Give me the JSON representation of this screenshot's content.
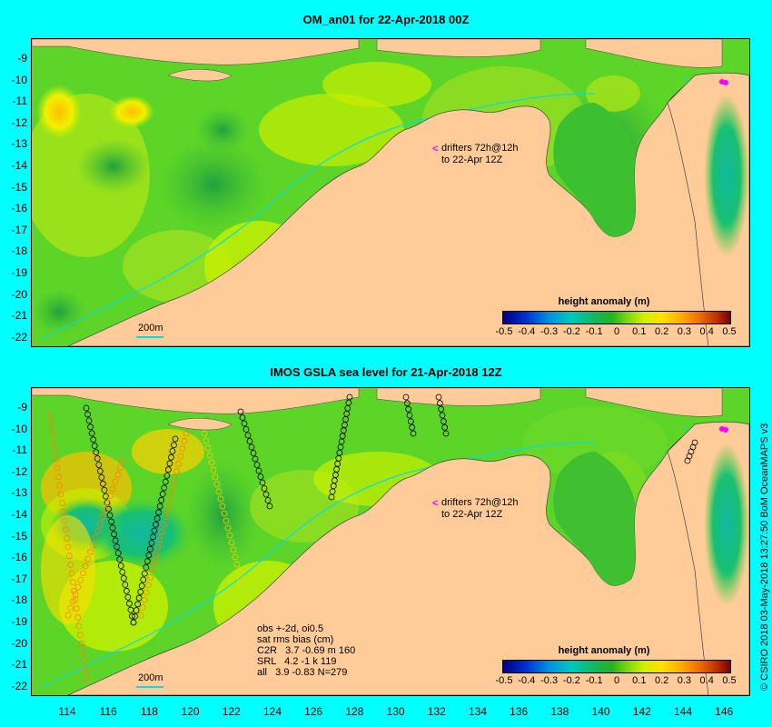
{
  "top_panel": {
    "title": "OM_an01 for 22-Apr-2018 00Z",
    "drifter_line1": "drifters 72h@12h",
    "drifter_line2": "to 22-Apr 12Z",
    "scale_label": "200m"
  },
  "bottom_panel": {
    "title": "IMOS GSLA sea level  for 21-Apr-2018 12Z",
    "drifter_line1": "drifters 72h@12h",
    "drifter_line2": "to 22-Apr 12Z",
    "scale_label": "200m",
    "stats": {
      "line1": "obs +-2d, oi0.5",
      "line2": "sat rms bias (cm)",
      "line3": "C2R   3.7 -0.69 m 160",
      "line4": "SRL   4.2 -1 k 119",
      "line5": "all   3.9 -0.83 N=279"
    }
  },
  "colorbar": {
    "title": "height anomaly (m)",
    "ticks": [
      "-0.5",
      "-0.4",
      "-0.3",
      "-0.2",
      "-0.1",
      "0",
      "0.1",
      "0.2",
      "0.3",
      "0.4",
      "0.5"
    ]
  },
  "latitude_labels": [
    "-9",
    "-10",
    "-11",
    "-12",
    "-13",
    "-14",
    "-15",
    "-16",
    "-17",
    "-18",
    "-19",
    "-20",
    "-21",
    "-22"
  ],
  "longitude_labels": [
    "114",
    "116",
    "118",
    "120",
    "122",
    "124",
    "126",
    "128",
    "130",
    "132",
    "134",
    "136",
    "138",
    "140",
    "142",
    "144",
    "146"
  ],
  "credit": "© CSIRO 2018  03-May-2018 13:27:50 BoM OceanMAPS v3",
  "colors": {
    "background": "#00ffff",
    "land": "#ffcc99",
    "shelf_outline": "#00e0e0",
    "drifter": "#ff00ff"
  }
}
